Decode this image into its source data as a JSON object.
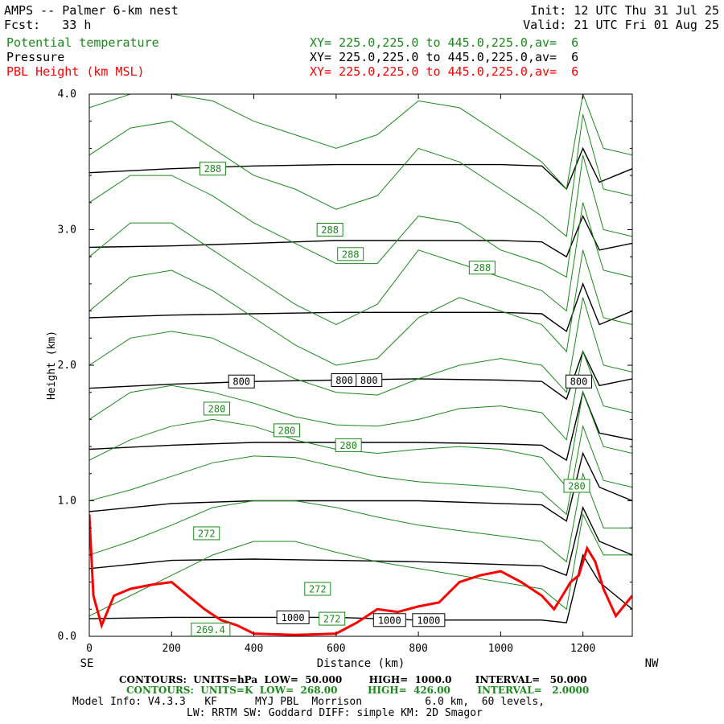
{
  "header": {
    "title": "AMPS -- Palmer 6-km nest",
    "fcst": "Fcst:   33 h",
    "init": "Init: 12 UTC Thu 31 Jul 25",
    "valid": "Valid: 21 UTC Fri 01 Aug 25"
  },
  "fields": [
    {
      "name": "Potential temperature",
      "xy": "XY= 225.0,225.0 to 445.0,225.0,av=  6",
      "color": "#1a8a1a"
    },
    {
      "name": "Pressure",
      "xy": "XY= 225.0,225.0 to 445.0,225.0,av=  6",
      "color": "#000000"
    },
    {
      "name": "PBL Height (km MSL)",
      "xy": "XY= 225.0,225.0 to 445.0,225.0,av=  6",
      "color": "#ff0000"
    }
  ],
  "footer": {
    "contours_p": "CONTOURS:  UNITS=hPa  LOW=  50.000        HIGH=  1000.0       INTERVAL=   50.000",
    "contours_t": "CONTOURS:  UNITS=K  LOW=  268.00         HIGH=  426.00        INTERVAL=   2.0000",
    "model1": "Model Info: V4.3.3   KF      MYJ PBL  Morrison          6.0 km,  60 levels,",
    "model2": "LW: RRTM SW: Goddard DIFF: simple KM: 2D Smagor"
  },
  "chart_data": {
    "type": "line",
    "title": "",
    "xlabel": "Distance (km)",
    "ylabel": "Height (km)",
    "xlim": [
      0,
      1320
    ],
    "ylim": [
      0,
      4.0
    ],
    "x_ticks": [
      "0",
      "200",
      "400",
      "600",
      "800",
      "1000",
      "1200"
    ],
    "y_ticks": [
      "0.0",
      "1.0",
      "2.0",
      "3.0",
      "4.0"
    ],
    "x_end_labels": {
      "left": "SE",
      "right": "NW"
    },
    "pressure_labels": [
      {
        "text": "800",
        "x": 370,
        "y": 1.88
      },
      {
        "text": "800",
        "x": 620,
        "y": 1.89
      },
      {
        "text": "800",
        "x": 680,
        "y": 1.89
      },
      {
        "text": "800",
        "x": 1190,
        "y": 1.88
      },
      {
        "text": "1000",
        "x": 495,
        "y": 0.14
      },
      {
        "text": "1000",
        "x": 730,
        "y": 0.12
      },
      {
        "text": "1000",
        "x": 825,
        "y": 0.12
      }
    ],
    "theta_labels": [
      {
        "text": "288",
        "x": 300,
        "y": 3.45
      },
      {
        "text": "288",
        "x": 585,
        "y": 3.0
      },
      {
        "text": "288",
        "x": 635,
        "y": 2.82
      },
      {
        "text": "288",
        "x": 955,
        "y": 2.72
      },
      {
        "text": "280",
        "x": 310,
        "y": 1.68
      },
      {
        "text": "280",
        "x": 480,
        "y": 1.52
      },
      {
        "text": "280",
        "x": 630,
        "y": 1.41
      },
      {
        "text": "280",
        "x": 1185,
        "y": 1.11
      },
      {
        "text": "272",
        "x": 285,
        "y": 0.76
      },
      {
        "text": "272",
        "x": 555,
        "y": 0.35
      },
      {
        "text": "272",
        "x": 590,
        "y": 0.13
      },
      {
        "text": "269.4",
        "x": 295,
        "y": 0.05
      }
    ],
    "series": [
      {
        "name": "Pressure",
        "color": "#000000",
        "lines": [
          {
            "x": [
              0,
              200,
              400,
              600,
              800,
              1000,
              1100,
              1160,
              1200,
              1240,
              1320
            ],
            "y": [
              0.13,
              0.14,
              0.14,
              0.14,
              0.12,
              0.12,
              0.12,
              0.1,
              0.6,
              0.4,
              0.2
            ]
          },
          {
            "x": [
              0,
              200,
              400,
              600,
              800,
              1000,
              1100,
              1160,
              1200,
              1240,
              1320
            ],
            "y": [
              0.5,
              0.56,
              0.57,
              0.56,
              0.55,
              0.53,
              0.52,
              0.45,
              0.95,
              0.7,
              0.6
            ]
          },
          {
            "x": [
              0,
              200,
              400,
              600,
              800,
              1000,
              1100,
              1160,
              1200,
              1240,
              1320
            ],
            "y": [
              0.92,
              0.98,
              1.0,
              1.0,
              1.0,
              0.98,
              0.97,
              0.85,
              1.35,
              1.1,
              1.0
            ]
          },
          {
            "x": [
              0,
              200,
              400,
              600,
              800,
              1000,
              1100,
              1160,
              1200,
              1240,
              1320
            ],
            "y": [
              1.38,
              1.41,
              1.43,
              1.43,
              1.43,
              1.42,
              1.41,
              1.3,
              1.8,
              1.5,
              1.45
            ]
          },
          {
            "x": [
              0,
              200,
              400,
              600,
              800,
              1000,
              1100,
              1160,
              1200,
              1240,
              1320
            ],
            "y": [
              1.83,
              1.86,
              1.88,
              1.89,
              1.9,
              1.89,
              1.88,
              1.75,
              2.1,
              1.85,
              1.9
            ]
          },
          {
            "x": [
              0,
              200,
              400,
              600,
              800,
              1000,
              1100,
              1160,
              1200,
              1240,
              1320
            ],
            "y": [
              2.35,
              2.37,
              2.38,
              2.39,
              2.39,
              2.39,
              2.38,
              2.25,
              2.6,
              2.3,
              2.4
            ]
          },
          {
            "x": [
              0,
              200,
              400,
              600,
              800,
              1000,
              1100,
              1160,
              1200,
              1240,
              1320
            ],
            "y": [
              2.87,
              2.88,
              2.9,
              2.92,
              2.92,
              2.92,
              2.91,
              2.8,
              3.1,
              2.85,
              2.9
            ]
          },
          {
            "x": [
              0,
              200,
              400,
              600,
              800,
              1000,
              1100,
              1160,
              1200,
              1240,
              1320
            ],
            "y": [
              3.42,
              3.45,
              3.47,
              3.48,
              3.48,
              3.48,
              3.47,
              3.3,
              3.6,
              3.35,
              3.45
            ]
          }
        ]
      },
      {
        "name": "Potential temperature",
        "color": "#1a8a1a",
        "lines": [
          {
            "x": [
              0,
              100,
              200,
              300,
              400,
              500,
              600,
              700,
              800,
              900,
              1000,
              1100,
              1160,
              1200,
              1250,
              1320
            ],
            "y": [
              0.15,
              0.3,
              0.45,
              0.6,
              0.7,
              0.7,
              0.62,
              0.55,
              0.5,
              0.45,
              0.4,
              0.35,
              0.2,
              0.9,
              0.6,
              0.6
            ]
          },
          {
            "x": [
              0,
              100,
              200,
              300,
              400,
              500,
              600,
              700,
              800,
              900,
              1000,
              1100,
              1160,
              1200,
              1250,
              1320
            ],
            "y": [
              0.6,
              0.7,
              0.82,
              0.95,
              1.0,
              1.0,
              0.95,
              0.88,
              0.82,
              0.78,
              0.74,
              0.7,
              0.55,
              1.2,
              0.8,
              0.8
            ]
          },
          {
            "x": [
              0,
              100,
              200,
              300,
              400,
              500,
              600,
              700,
              800,
              900,
              1000,
              1100,
              1160,
              1200,
              1250,
              1320
            ],
            "y": [
              1.0,
              1.08,
              1.18,
              1.28,
              1.33,
              1.32,
              1.25,
              1.18,
              1.14,
              1.12,
              1.1,
              1.06,
              0.9,
              1.55,
              1.15,
              1.1
            ]
          },
          {
            "x": [
              0,
              100,
              200,
              300,
              400,
              500,
              600,
              700,
              800,
              900,
              1000,
              1100,
              1160,
              1200,
              1250,
              1320
            ],
            "y": [
              1.3,
              1.45,
              1.55,
              1.6,
              1.55,
              1.45,
              1.38,
              1.35,
              1.38,
              1.4,
              1.38,
              1.32,
              1.1,
              1.8,
              1.4,
              1.35
            ]
          },
          {
            "x": [
              0,
              100,
              200,
              300,
              400,
              500,
              600,
              700,
              800,
              900,
              1000,
              1100,
              1160,
              1200,
              1250,
              1320
            ],
            "y": [
              1.6,
              1.8,
              1.85,
              1.8,
              1.72,
              1.62,
              1.56,
              1.55,
              1.6,
              1.68,
              1.7,
              1.65,
              1.45,
              2.1,
              1.7,
              1.65
            ]
          },
          {
            "x": [
              0,
              100,
              200,
              300,
              400,
              500,
              600,
              700,
              800,
              900,
              1000,
              1100,
              1160,
              1200,
              1250,
              1320
            ],
            "y": [
              2.0,
              2.2,
              2.25,
              2.2,
              2.05,
              1.9,
              1.8,
              1.78,
              1.9,
              2.0,
              2.05,
              2.0,
              1.8,
              2.5,
              2.0,
              1.95
            ]
          },
          {
            "x": [
              0,
              100,
              200,
              300,
              400,
              500,
              600,
              700,
              800,
              900,
              1000,
              1100,
              1160,
              1200,
              1250,
              1320
            ],
            "y": [
              2.4,
              2.65,
              2.7,
              2.55,
              2.35,
              2.15,
              2.0,
              2.05,
              2.35,
              2.5,
              2.4,
              2.3,
              2.1,
              2.85,
              2.35,
              2.3
            ]
          },
          {
            "x": [
              0,
              100,
              200,
              300,
              400,
              500,
              600,
              700,
              800,
              900,
              1000,
              1100,
              1160,
              1200,
              1250,
              1320
            ],
            "y": [
              2.8,
              3.05,
              3.05,
              2.85,
              2.65,
              2.45,
              2.3,
              2.45,
              2.85,
              2.75,
              2.65,
              2.55,
              2.4,
              3.2,
              2.7,
              2.65
            ]
          },
          {
            "x": [
              0,
              100,
              200,
              300,
              400,
              500,
              600,
              700,
              800,
              900,
              1000,
              1100,
              1160,
              1200,
              1250,
              1320
            ],
            "y": [
              3.2,
              3.4,
              3.4,
              3.25,
              3.05,
              2.9,
              2.75,
              2.75,
              3.1,
              3.05,
              2.85,
              2.75,
              2.65,
              3.55,
              3.0,
              2.95
            ]
          },
          {
            "x": [
              0,
              100,
              200,
              300,
              400,
              500,
              600,
              700,
              800,
              900,
              1000,
              1100,
              1160,
              1200,
              1250,
              1320
            ],
            "y": [
              3.55,
              3.75,
              3.8,
              3.6,
              3.4,
              3.3,
              3.15,
              3.25,
              3.6,
              3.5,
              3.3,
              3.1,
              2.95,
              3.85,
              3.3,
              3.25
            ]
          },
          {
            "x": [
              0,
              100,
              200,
              300,
              400,
              500,
              600,
              700,
              800,
              900,
              1000,
              1100,
              1160,
              1200,
              1250,
              1320
            ],
            "y": [
              3.9,
              4.0,
              4.0,
              3.95,
              3.8,
              3.7,
              3.6,
              3.7,
              3.95,
              3.9,
              3.7,
              3.5,
              3.3,
              4.0,
              3.6,
              3.55
            ]
          }
        ]
      },
      {
        "name": "PBL Height (km MSL)",
        "color": "#ff0000",
        "lines": [
          {
            "x": [
              0,
              10,
              30,
              60,
              100,
              150,
              200,
              240,
              280,
              320,
              360,
              400,
              500,
              600,
              650,
              700,
              750,
              800,
              850,
              900,
              950,
              1000,
              1050,
              1100,
              1130,
              1150,
              1170,
              1190,
              1210,
              1230,
              1250,
              1280,
              1320
            ],
            "y": [
              0.9,
              0.3,
              0.08,
              0.3,
              0.35,
              0.38,
              0.4,
              0.3,
              0.2,
              0.12,
              0.08,
              0.02,
              0.01,
              0.02,
              0.1,
              0.2,
              0.18,
              0.22,
              0.25,
              0.4,
              0.45,
              0.48,
              0.4,
              0.3,
              0.2,
              0.3,
              0.4,
              0.45,
              0.65,
              0.55,
              0.35,
              0.15,
              0.3
            ]
          }
        ]
      }
    ]
  }
}
